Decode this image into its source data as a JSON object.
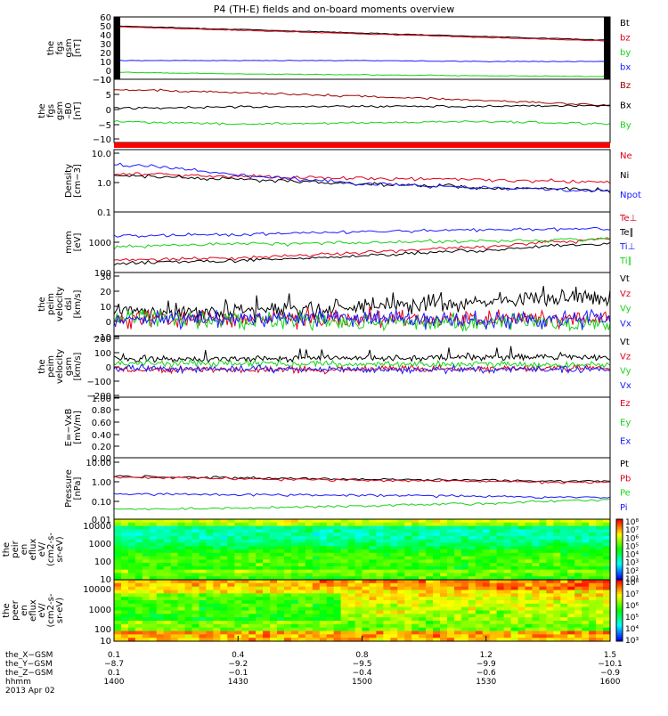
{
  "title": "P4 (TH-E) fields and on-board moments overview",
  "colors": {
    "black": "#000000",
    "red": "#e0001a",
    "green": "#19d219",
    "blue": "#1a1aff",
    "darkred": "#a00000"
  },
  "chart_data": [
    {
      "type": "line",
      "ylabel": [
        "the",
        "fgs",
        "gsm",
        "[nT]"
      ],
      "yticks": [
        "60",
        "50",
        "40",
        "30",
        "20",
        "10",
        "0",
        "−10"
      ],
      "ylim": [
        -10,
        60
      ],
      "x": [
        0,
        0.25,
        0.5,
        0.75,
        1
      ],
      "series": [
        {
          "name": "Bt",
          "color": "#000000",
          "values": [
            50,
            46,
            42,
            38,
            34
          ]
        },
        {
          "name": "bz",
          "color": "#e0001a",
          "values": [
            49,
            45,
            41,
            37,
            33
          ]
        },
        {
          "name": "by",
          "color": "#19d219",
          "values": [
            -2,
            -4,
            -5,
            -6,
            -7
          ]
        },
        {
          "name": "bx",
          "color": "#1a1aff",
          "values": [
            11,
            11,
            11,
            10,
            10
          ]
        }
      ]
    },
    {
      "type": "line",
      "ylabel": [
        "the",
        "fgs",
        "gsm",
        "–B0",
        "[nT]"
      ],
      "yticks": [
        "10",
        "5",
        "0",
        "−5",
        "−10"
      ],
      "ylim": [
        -14,
        10
      ],
      "x": [
        0,
        0.25,
        0.5,
        0.75,
        1
      ],
      "series": [
        {
          "name": "Bz",
          "color": "#a00000",
          "values": [
            6,
            5,
            3.5,
            2,
            0
          ]
        },
        {
          "name": "Bx",
          "color": "#000000",
          "values": [
            -1,
            -0.5,
            -0.3,
            -0.2,
            0
          ]
        },
        {
          "name": "By",
          "color": "#19d219",
          "values": [
            -6,
            -7,
            -6.5,
            -6,
            -7
          ]
        }
      ]
    },
    {
      "type": "line",
      "ylabel": [
        "Density",
        "[cm−3]"
      ],
      "yticks": [
        "10.0",
        "1.0",
        "0.1"
      ],
      "log": true,
      "ylim": [
        0.1,
        10
      ],
      "x": [
        0,
        0.25,
        0.5,
        0.75,
        1
      ],
      "series": [
        {
          "name": "Ne",
          "color": "#e0001a",
          "values": [
            1.7,
            1.4,
            1.2,
            1.1,
            0.9
          ]
        },
        {
          "name": "Ni",
          "color": "#000000",
          "values": [
            1.5,
            1.1,
            0.8,
            0.6,
            0.5
          ]
        },
        {
          "name": "Npot",
          "color": "#1a1aff",
          "values": [
            3.5,
            1.5,
            0.8,
            0.6,
            0.45
          ]
        }
      ]
    },
    {
      "type": "line",
      "ylabel": [
        "mom",
        "[eV]"
      ],
      "yticks": [
        "1000",
        "100"
      ],
      "log": true,
      "ylim": [
        100,
        10000
      ],
      "x": [
        0,
        0.25,
        0.5,
        0.75,
        1
      ],
      "series": [
        {
          "name": "Te⊥",
          "color": "#e0001a",
          "values": [
            250,
            300,
            450,
            700,
            1300
          ]
        },
        {
          "name": "Te∥",
          "color": "#000000",
          "values": [
            200,
            250,
            350,
            550,
            900
          ]
        },
        {
          "name": "Ti⊥",
          "color": "#1a1aff",
          "values": [
            1600,
            1800,
            2200,
            2600,
            2800
          ]
        },
        {
          "name": "Ti∥",
          "color": "#19d219",
          "values": [
            700,
            900,
            1000,
            1100,
            1300
          ]
        }
      ]
    },
    {
      "type": "line",
      "ylabel": [
        "the",
        "peim",
        "velocity",
        "dsl",
        "[km/s]"
      ],
      "yticks": [
        "30",
        "20",
        "10",
        "0",
        "−10"
      ],
      "ylim": [
        -12,
        32
      ],
      "series": [
        {
          "name": "Vt",
          "color": "#000000",
          "values": [
            5,
            6,
            8,
            12,
            15
          ]
        },
        {
          "name": "Vz",
          "color": "#e0001a",
          "values": [
            0,
            0,
            0,
            0,
            0
          ]
        },
        {
          "name": "Vy",
          "color": "#19d219",
          "values": [
            0,
            -1,
            -2,
            -3,
            -4
          ]
        },
        {
          "name": "Vx",
          "color": "#1a1aff",
          "values": [
            0,
            0,
            0,
            -1,
            0
          ]
        }
      ]
    },
    {
      "type": "line",
      "ylabel": [
        "the",
        "peim",
        "velocity",
        "gsm",
        "[km/s]"
      ],
      "yticks": [
        "200",
        "100",
        "0",
        "−100",
        "−200"
      ],
      "ylim": [
        -200,
        200
      ],
      "series": [
        {
          "name": "Vt",
          "color": "#000000",
          "values": [
            50,
            50,
            55,
            60,
            60
          ]
        },
        {
          "name": "Vz",
          "color": "#e0001a",
          "values": [
            -20,
            -20,
            -20,
            -15,
            -10
          ]
        },
        {
          "name": "Vy",
          "color": "#19d219",
          "values": [
            20,
            20,
            15,
            15,
            10
          ]
        },
        {
          "name": "Vx",
          "color": "#1a1aff",
          "values": [
            -10,
            -15,
            -20,
            -20,
            -20
          ]
        }
      ]
    },
    {
      "type": "line",
      "ylabel": [
        "E=−VxB",
        "[mV/m]"
      ],
      "yticks": [
        "1.00",
        "0.80",
        "0.60",
        "0.40",
        "0.20",
        "0.00"
      ],
      "ylim": [
        0,
        1
      ],
      "series": [
        {
          "name": "Ez",
          "color": "#e0001a",
          "values": []
        },
        {
          "name": "Ey",
          "color": "#19d219",
          "values": []
        },
        {
          "name": "Ex",
          "color": "#1a1aff",
          "values": []
        }
      ]
    },
    {
      "type": "line",
      "ylabel": [
        "Pressure",
        "[nPa]"
      ],
      "yticks": [
        "10.00",
        "1.00",
        "0.10",
        "0.01"
      ],
      "log": true,
      "ylim": [
        0.01,
        10
      ],
      "x": [
        0,
        0.25,
        0.5,
        0.75,
        1
      ],
      "series": [
        {
          "name": "Pt",
          "color": "#000000",
          "values": [
            1.2,
            1.05,
            0.9,
            0.8,
            0.7
          ]
        },
        {
          "name": "Pb",
          "color": "#e0001a",
          "values": [
            1.1,
            0.95,
            0.8,
            0.7,
            0.6
          ]
        },
        {
          "name": "Pe",
          "color": "#19d219",
          "values": [
            0.03,
            0.035,
            0.045,
            0.06,
            0.09
          ]
        },
        {
          "name": "Pi",
          "color": "#1a1aff",
          "values": [
            0.17,
            0.16,
            0.15,
            0.13,
            0.11
          ]
        }
      ]
    },
    {
      "type": "heatmap",
      "ylabel": [
        "the",
        "peir",
        "en",
        "eflux",
        "eV/",
        "(cm2-s-",
        "sr-eV)"
      ],
      "yticks": [
        "10000",
        "1000",
        "100",
        "10"
      ],
      "log": true,
      "colorbar": [
        "10⁸",
        "10⁷",
        "10⁶",
        "10⁵",
        "10⁴",
        "10³",
        "10²",
        "10¹"
      ]
    },
    {
      "type": "heatmap",
      "ylabel": [
        "the",
        "peer",
        "en",
        "eflux",
        "eV/",
        "(cm2-s-",
        "sr-eV)"
      ],
      "yticks": [
        "10000",
        "1000",
        "100",
        "10"
      ],
      "log": true,
      "colorbar": [
        "10⁸",
        "10⁷",
        "10⁶",
        "10⁵",
        "10⁴",
        "10³"
      ]
    }
  ],
  "x_axis": {
    "rows": [
      {
        "label": "the_X−GSM",
        "values": [
          "0.1",
          "0.4",
          "0.8",
          "1.2",
          "1.5"
        ]
      },
      {
        "label": "the_Y−GSM",
        "values": [
          "−8.7",
          "−9.2",
          "−9.5",
          "−9.9",
          "−10.1"
        ]
      },
      {
        "label": "the_Z−GSM",
        "values": [
          "0.1",
          "−0.1",
          "−0.4",
          "−0.6",
          "−0.9"
        ]
      },
      {
        "label": "hhmm",
        "values": [
          "1400",
          "1430",
          "1500",
          "1530",
          "1600"
        ]
      }
    ],
    "date": "2013 Apr 02"
  }
}
